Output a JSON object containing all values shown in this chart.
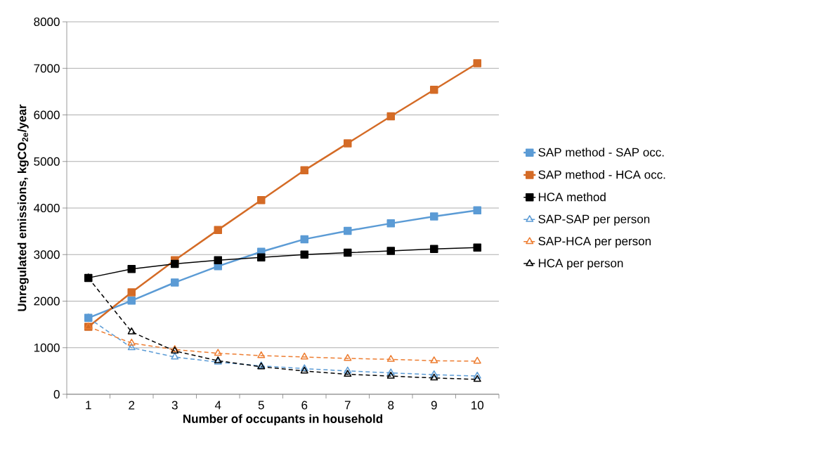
{
  "chart_data": {
    "type": "line",
    "xlabel": "Number of occupants in household",
    "ylabel": "Unregulated emissions, kgCO$_{2e}$/year",
    "categories": [
      "1",
      "2",
      "3",
      "4",
      "5",
      "6",
      "7",
      "8",
      "9",
      "10"
    ],
    "series": [
      {
        "name": "SAP method - SAP occ.",
        "color": "#5b9bd5",
        "marker": "square",
        "line_style": "solid",
        "values": [
          1640,
          2010,
          2400,
          2750,
          3060,
          3330,
          3510,
          3670,
          3820,
          3950
        ]
      },
      {
        "name": "SAP method - HCA occ.",
        "color": "#d46b26",
        "marker": "square",
        "line_style": "solid",
        "values": [
          1450,
          2190,
          2880,
          3530,
          4170,
          4810,
          5390,
          5970,
          6540,
          7110
        ]
      },
      {
        "name": "HCA method",
        "color": "#000000",
        "marker": "square",
        "line_style": "solid",
        "values": [
          2500,
          2690,
          2800,
          2880,
          2940,
          3000,
          3040,
          3080,
          3120,
          3150
        ]
      },
      {
        "name": "SAP-SAP per person",
        "color": "#5b9bd5",
        "marker": "triangle",
        "line_style": "dashed",
        "values": [
          1640,
          1000,
          800,
          690,
          610,
          550,
          500,
          460,
          420,
          390
        ]
      },
      {
        "name": "SAP-HCA per person",
        "color": "#ed7d31",
        "marker": "triangle",
        "line_style": "dashed",
        "values": [
          1450,
          1100,
          960,
          880,
          830,
          800,
          770,
          750,
          720,
          710
        ]
      },
      {
        "name": "HCA per person",
        "color": "#000000",
        "marker": "triangle",
        "line_style": "dashed",
        "values": [
          2500,
          1340,
          930,
          720,
          590,
          500,
          430,
          390,
          350,
          320
        ]
      }
    ],
    "ylim": [
      0,
      8000
    ],
    "yticks": [
      0,
      1000,
      2000,
      3000,
      4000,
      5000,
      6000,
      7000,
      8000
    ],
    "grid": "y",
    "legend": "right"
  }
}
